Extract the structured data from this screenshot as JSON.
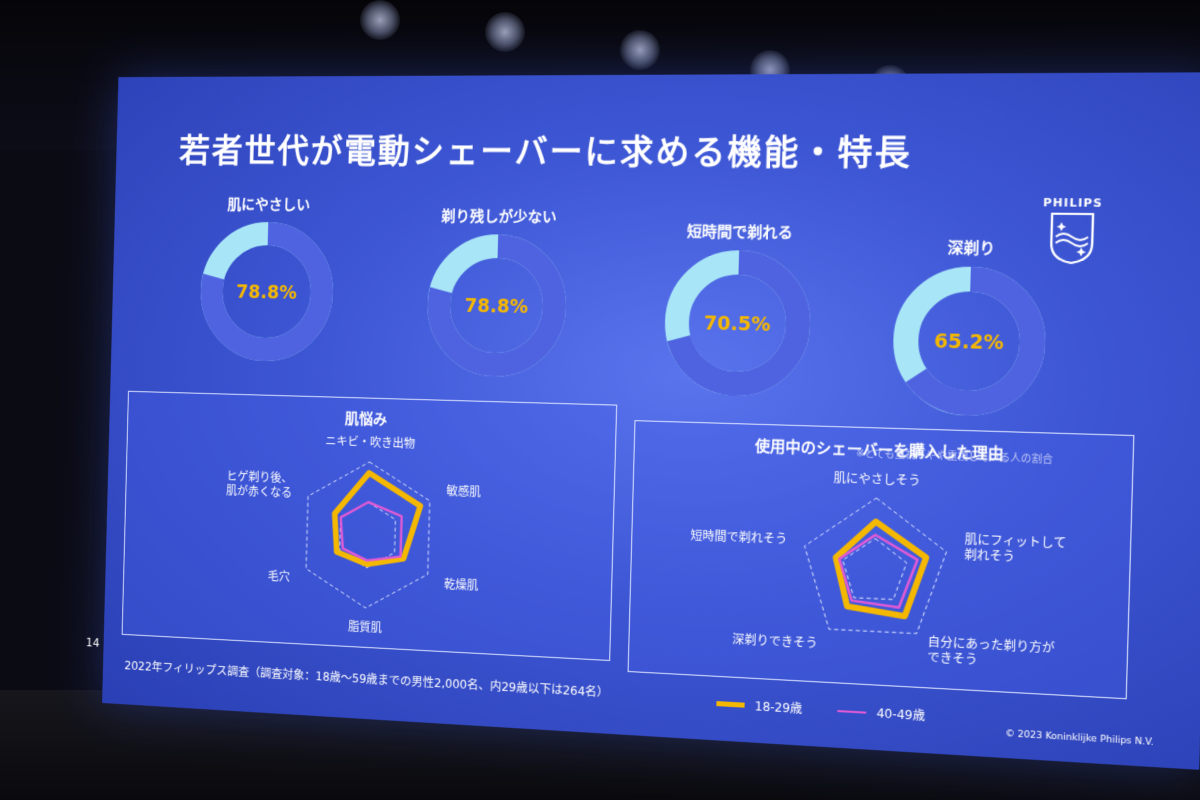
{
  "slide": {
    "title": "若者世代が電動シェーバーに求める機能・特長",
    "logo_text": "PHILIPS",
    "note": "※とても重視／やや重視している人の割合",
    "slide_number": "14",
    "source": "2022年フィリップス調査（調査対象：18歳〜59歳までの男性2,000名、内29歳以下は264名）",
    "copyright": "© 2023 Koninklijke Philips N.V."
  },
  "colors": {
    "accent": "#f5b800",
    "donut_main": "#4f63e0",
    "donut_rest": "#a8e6f7",
    "series_pink": "#e05ad6",
    "series_gold": "#f5b800"
  },
  "legend": [
    {
      "name": "18-29歳",
      "color": "#f5b800"
    },
    {
      "name": "40-49歳",
      "color": "#e05ad6"
    }
  ],
  "chart_data": [
    {
      "type": "pie",
      "title": "肌にやさしい",
      "value": 78.8,
      "label": "78.8%"
    },
    {
      "type": "pie",
      "title": "剃り残しが少ない",
      "value": 78.8,
      "label": "78.8%"
    },
    {
      "type": "pie",
      "title": "短時間で剃れる",
      "value": 70.5,
      "label": "70.5%"
    },
    {
      "type": "pie",
      "title": "深剃り",
      "value": 65.2,
      "label": "65.2%"
    },
    {
      "type": "radar",
      "title": "肌悩み",
      "categories": [
        "ニキビ・吹き出物",
        "敏感肌",
        "乾燥肌",
        "脂質肌",
        "毛穴",
        "ヒゲ剃り後、\n肌が赤くなる"
      ],
      "series": [
        {
          "name": "18-29歳",
          "values": [
            0.85,
            0.85,
            0.6,
            0.4,
            0.5,
            0.55
          ]
        },
        {
          "name": "40-49歳",
          "values": [
            0.45,
            0.55,
            0.55,
            0.35,
            0.4,
            0.45
          ]
        }
      ]
    },
    {
      "type": "radar",
      "title": "使用中のシェーバーを購入した理由",
      "categories": [
        "肌にやさしそう",
        "肌にフィットして\n剃れそう",
        "自分にあった剃り方が\nできそう",
        "深剃りできそう",
        "短時間で剃れそう"
      ],
      "series": [
        {
          "name": "18-29歳",
          "values": [
            0.68,
            0.72,
            0.72,
            0.6,
            0.55
          ]
        },
        {
          "name": "40-49歳",
          "values": [
            0.5,
            0.6,
            0.58,
            0.5,
            0.5
          ]
        }
      ]
    }
  ]
}
